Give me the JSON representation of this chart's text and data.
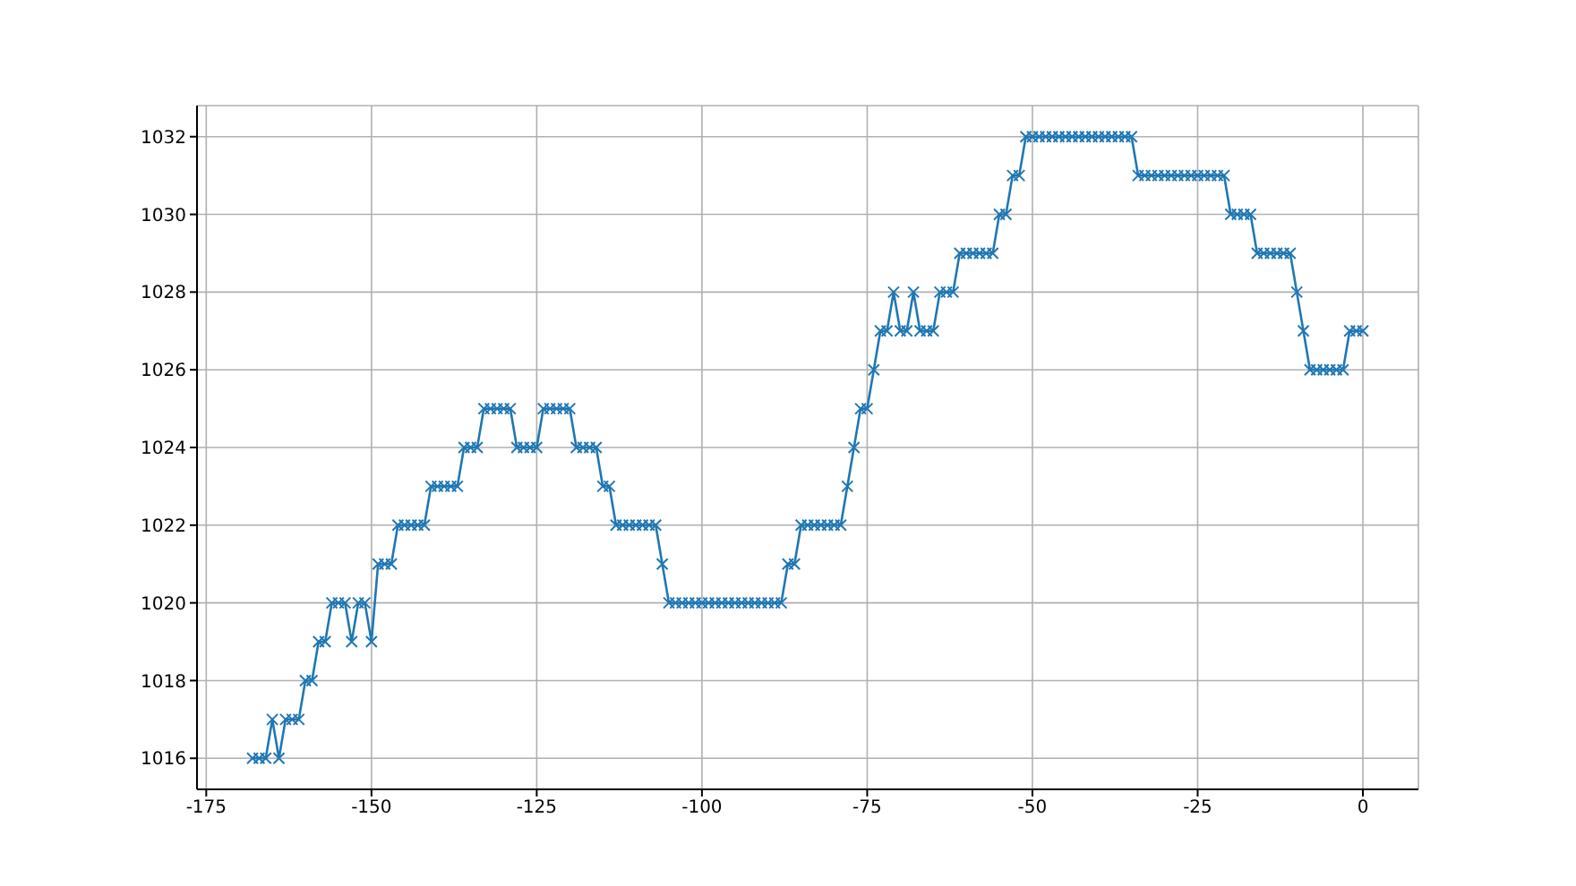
{
  "chart_data": {
    "type": "line",
    "marker": "cross",
    "line_style": "solid",
    "grid": true,
    "xlim": [
      -176.4,
      8.4
    ],
    "xticks": [
      -175,
      -150,
      -125,
      -100,
      -75,
      -50,
      -25,
      0
    ],
    "ylim": [
      1015.2,
      1032.8
    ],
    "yticks": [
      1016,
      1018,
      1020,
      1022,
      1024,
      1026,
      1028,
      1030,
      1032
    ],
    "series": [
      {
        "color": "#1f77b4",
        "x": [
          -168,
          -167,
          -166,
          -165,
          -164,
          -163,
          -162,
          -161,
          -160,
          -159,
          -158,
          -157,
          -156,
          -155,
          -154,
          -153,
          -152,
          -151,
          -150,
          -149,
          -148,
          -147,
          -146,
          -145,
          -144,
          -143,
          -142,
          -141,
          -140,
          -139,
          -138,
          -137,
          -136,
          -135,
          -134,
          -133,
          -132,
          -131,
          -130,
          -129,
          -128,
          -127,
          -126,
          -125,
          -124,
          -123,
          -122,
          -121,
          -120,
          -119,
          -118,
          -117,
          -116,
          -115,
          -114,
          -113,
          -112,
          -111,
          -110,
          -109,
          -108,
          -107,
          -106,
          -105,
          -104,
          -103,
          -102,
          -101,
          -100,
          -99,
          -98,
          -97,
          -96,
          -95,
          -94,
          -93,
          -92,
          -91,
          -90,
          -89,
          -88,
          -87,
          -86,
          -85,
          -84,
          -83,
          -82,
          -81,
          -80,
          -79,
          -78,
          -77,
          -76,
          -75,
          -74,
          -73,
          -72,
          -71,
          -70,
          -69,
          -68,
          -67,
          -66,
          -65,
          -64,
          -63,
          -62,
          -61,
          -60,
          -59,
          -58,
          -57,
          -56,
          -55,
          -54,
          -53,
          -52,
          -51,
          -50,
          -49,
          -48,
          -47,
          -46,
          -45,
          -44,
          -43,
          -42,
          -41,
          -40,
          -39,
          -38,
          -37,
          -36,
          -35,
          -34,
          -33,
          -32,
          -31,
          -30,
          -29,
          -28,
          -27,
          -26,
          -25,
          -24,
          -23,
          -22,
          -21,
          -20,
          -19,
          -18,
          -17,
          -16,
          -15,
          -14,
          -13,
          -12,
          -11,
          -10,
          -9,
          -8,
          -7,
          -6,
          -5,
          -4,
          -3,
          -2,
          -1,
          0
        ],
        "values": [
          1016,
          1016,
          1016,
          1017,
          1016,
          1017,
          1017,
          1017,
          1018,
          1018,
          1019,
          1019,
          1020,
          1020,
          1020,
          1019,
          1020,
          1020,
          1019,
          1021,
          1021,
          1021,
          1022,
          1022,
          1022,
          1022,
          1022,
          1023,
          1023,
          1023,
          1023,
          1023,
          1024,
          1024,
          1024,
          1025,
          1025,
          1025,
          1025,
          1025,
          1024,
          1024,
          1024,
          1024,
          1025,
          1025,
          1025,
          1025,
          1025,
          1024,
          1024,
          1024,
          1024,
          1023,
          1023,
          1022,
          1022,
          1022,
          1022,
          1022,
          1022,
          1022,
          1021,
          1020,
          1020,
          1020,
          1020,
          1020,
          1020,
          1020,
          1020,
          1020,
          1020,
          1020,
          1020,
          1020,
          1020,
          1020,
          1020,
          1020,
          1020,
          1021,
          1021,
          1022,
          1022,
          1022,
          1022,
          1022,
          1022,
          1022,
          1023,
          1024,
          1025,
          1025,
          1026,
          1027,
          1027,
          1028,
          1027,
          1027,
          1028,
          1027,
          1027,
          1027,
          1028,
          1028,
          1028,
          1029,
          1029,
          1029,
          1029,
          1029,
          1029,
          1030,
          1030,
          1031,
          1031,
          1032,
          1032,
          1032,
          1032,
          1032,
          1032,
          1032,
          1032,
          1032,
          1032,
          1032,
          1032,
          1032,
          1032,
          1032,
          1032,
          1032,
          1031,
          1031,
          1031,
          1031,
          1031,
          1031,
          1031,
          1031,
          1031,
          1031,
          1031,
          1031,
          1031,
          1031,
          1030,
          1030,
          1030,
          1030,
          1029,
          1029,
          1029,
          1029,
          1029,
          1029,
          1028,
          1027,
          1026,
          1026,
          1026,
          1026,
          1026,
          1026,
          1027,
          1027,
          1027
        ]
      }
    ]
  }
}
